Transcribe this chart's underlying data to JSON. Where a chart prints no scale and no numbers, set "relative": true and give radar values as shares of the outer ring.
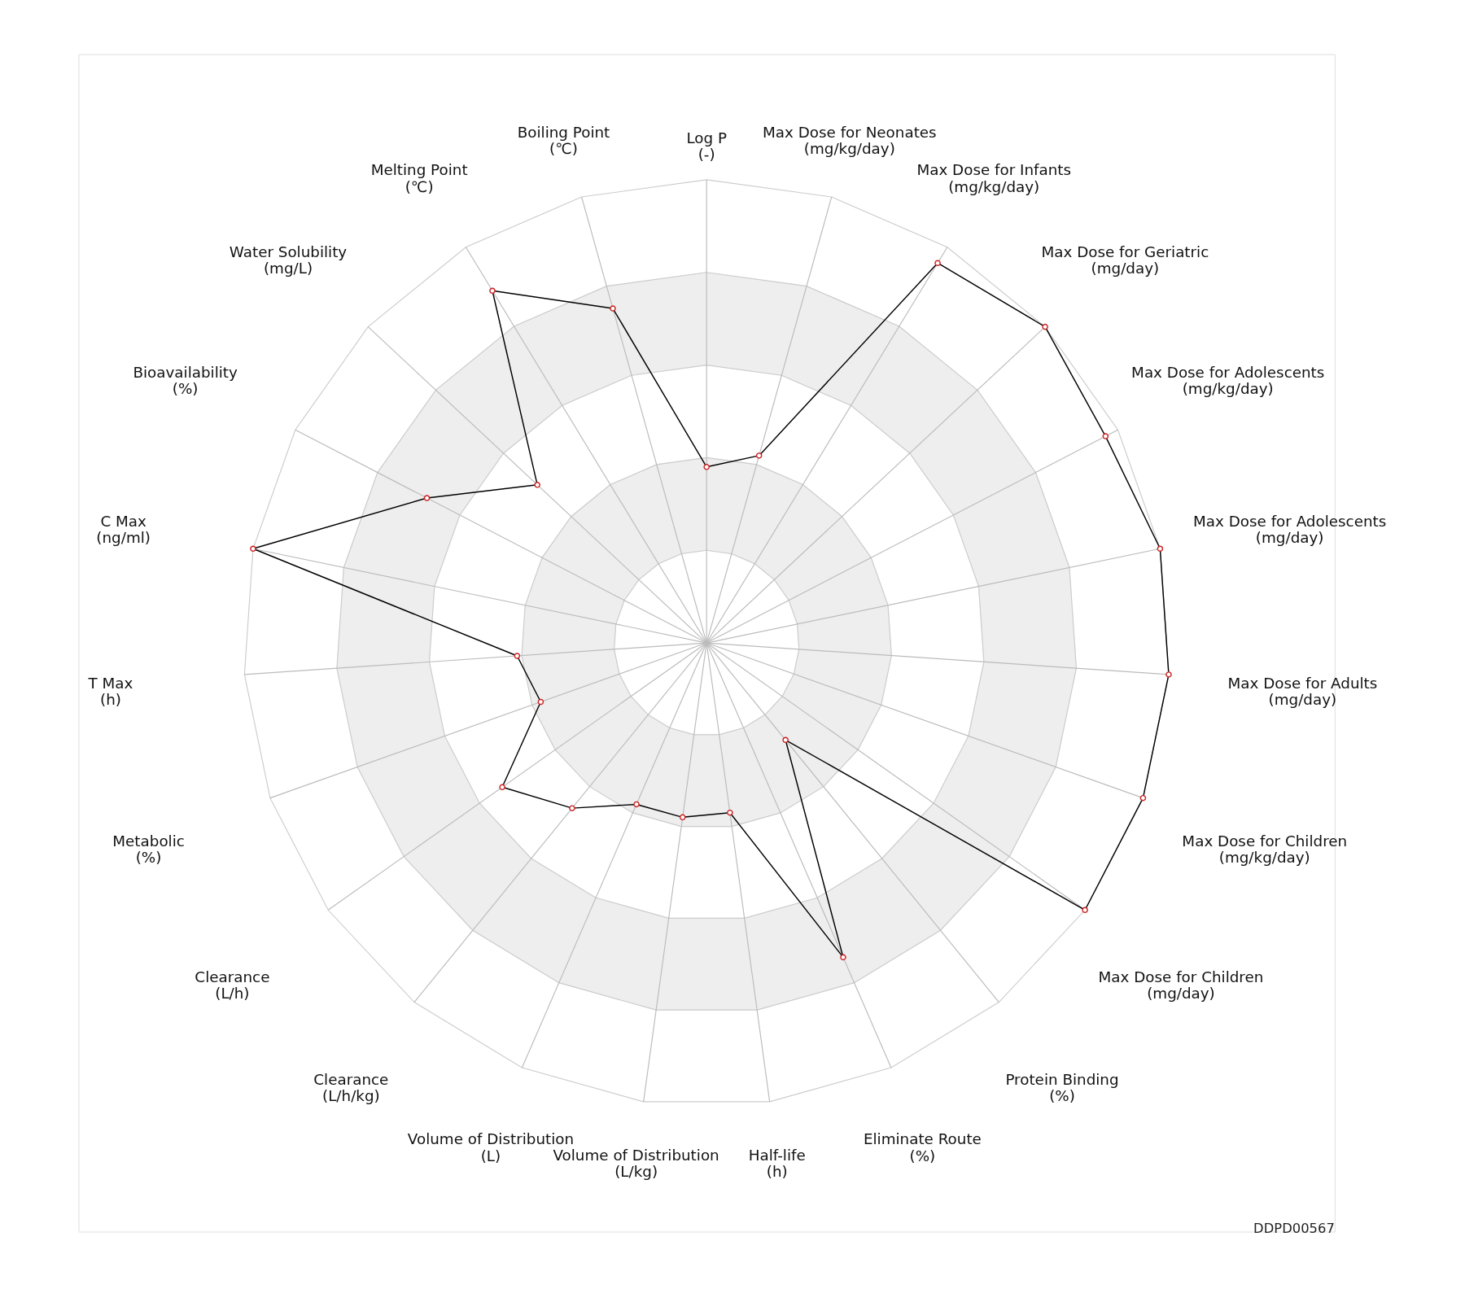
{
  "chart_data": {
    "type": "radar",
    "relative": true,
    "grid": true,
    "marker": "circle",
    "categories": [
      "Log P\n(-)",
      "Max Dose for Neonates\n(mg/kg/day)",
      "Max Dose for Infants\n(mg/kg/day)",
      "Max Dose for Geriatric\n(mg/day)",
      "Max Dose for Adolescents\n(mg/kg/day)",
      "Max Dose for Adolescents\n(mg/day)",
      "Max Dose for Adults\n(mg/day)",
      "Max Dose for Children\n(mg/kg/day)",
      "Max Dose for Children\n(mg/day)",
      "Protein Binding\n(%)",
      "Eliminate Route\n(%)",
      "Half-life\n(h)",
      "Volume of Distribution\n(L/kg)",
      "Volume of Distribution\n(L)",
      "Clearance\n(L/h/kg)",
      "Clearance\n(L/h)",
      "Metabolic\n(%)",
      "T Max\n(h)",
      "C Max\n(ng/ml)",
      "Bioavailability\n(%)",
      "Water Solubility\n(mg/L)",
      "Melting Point\n(℃)",
      "Boiling Point\n(℃)"
    ],
    "series": [
      {
        "color": "#000000",
        "values": [
          0.38,
          0.42,
          0.96,
          1.0,
          0.97,
          1.0,
          1.0,
          1.0,
          1.0,
          0.27,
          0.74,
          0.37,
          0.38,
          0.38,
          0.46,
          0.54,
          0.38,
          0.41,
          1.0,
          0.68,
          0.5,
          0.89,
          0.75
        ]
      }
    ],
    "annotations": [
      "DDPD00567"
    ]
  }
}
